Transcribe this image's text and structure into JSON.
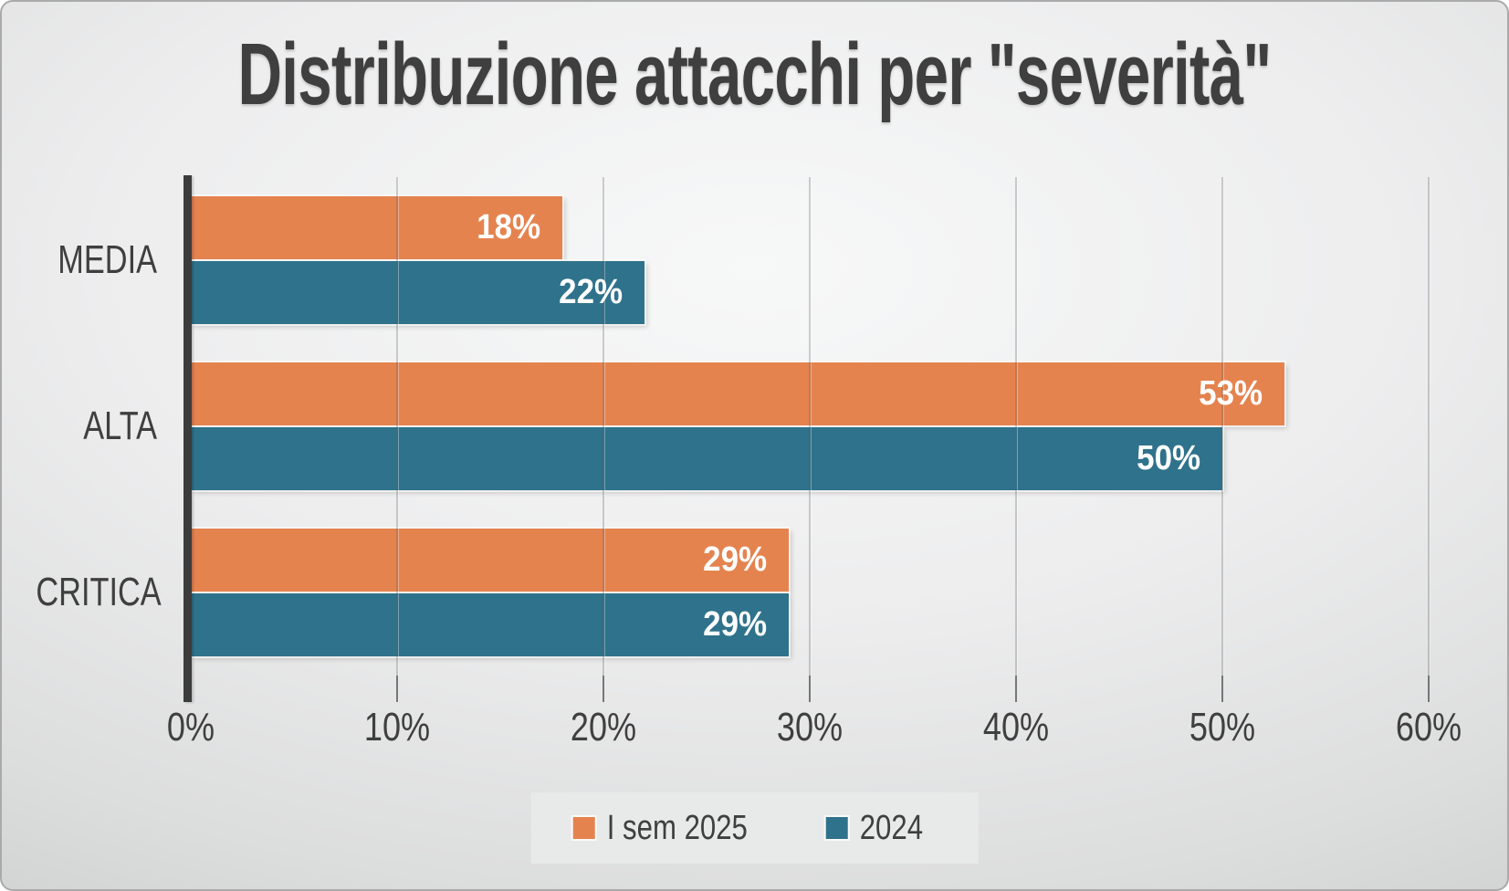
{
  "title": "Distribuzione attacchi per \"severità\"",
  "colors": {
    "series1_orange": "#E5834F",
    "series2_teal": "#2F728C",
    "title_text": "#3F3F3F",
    "axis_line": "#3C3C3C",
    "gridline": "#9B9D9D",
    "tick_mark": "#767878",
    "bar_value_text": "#FFFFFF",
    "legend_background": "#E8E9E9",
    "background_light": "#F7F8F8",
    "background_dark": "#C2C3C3"
  },
  "chart_data": {
    "type": "bar",
    "orientation": "horizontal",
    "title": "Distribuzione attacchi per \"severità\"",
    "categories": [
      "MEDIA",
      "ALTA",
      "CRITICA"
    ],
    "series": [
      {
        "name": "I sem 2025",
        "color": "#E5834F",
        "values": [
          18,
          53,
          29
        ]
      },
      {
        "name": "2024",
        "color": "#2F728C",
        "values": [
          22,
          50,
          29
        ]
      }
    ],
    "unit": "%",
    "value_labels": [
      [
        "18%",
        "22%"
      ],
      [
        "53%",
        "50%"
      ],
      [
        "29%",
        "29%"
      ]
    ],
    "x_ticks": [
      "0%",
      "10%",
      "20%",
      "30%",
      "40%",
      "50%",
      "60%"
    ],
    "xlim": [
      0,
      60
    ],
    "xlabel": "",
    "ylabel": "",
    "grid": true,
    "legend_position": "bottom",
    "value_label_position": "inside-end"
  }
}
